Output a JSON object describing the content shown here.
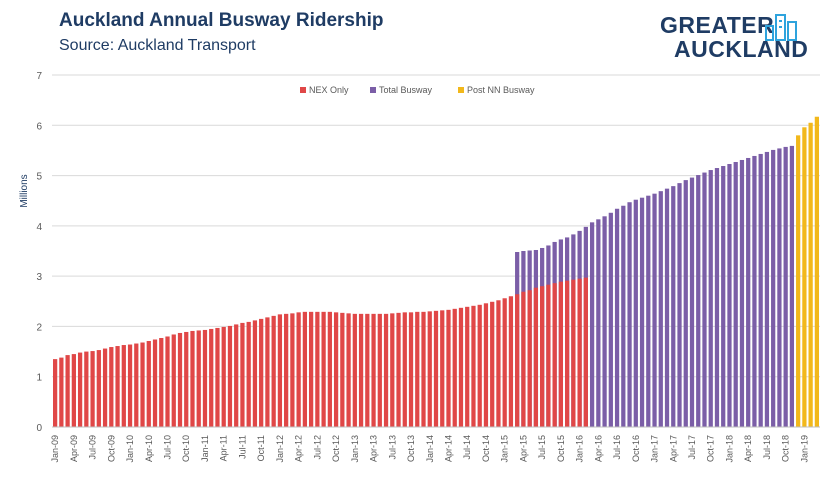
{
  "header": {
    "title": "Auckland Annual Busway Ridership",
    "subtitle": "Source: Auckland Transport",
    "logo_line1": "GREATER",
    "logo_line2": "AUCKLAND"
  },
  "colors": {
    "nex_only": "#e04747",
    "total_busway": "#7b5ea7",
    "post_nn": "#f2b81b",
    "grid": "#d9d9d9",
    "text": "#595959",
    "brand": "#1f3c64",
    "accent": "#2ea3dd"
  },
  "chart_data": {
    "type": "bar",
    "ylabel": "Millions",
    "ylim": [
      0,
      7
    ],
    "yticks": [
      "0",
      "1",
      "2",
      "3",
      "4",
      "5",
      "6",
      "7"
    ],
    "grid": true,
    "legend_placement": "top-center",
    "x_tick_labels": [
      "Jan-09",
      "Apr-09",
      "Jul-09",
      "Oct-09",
      "Jan-10",
      "Apr-10",
      "Jul-10",
      "Oct-10",
      "Jan-11",
      "Apr-11",
      "Jul-11",
      "Oct-11",
      "Jan-12",
      "Apr-12",
      "Jul-12",
      "Oct-12",
      "Jan-13",
      "Apr-13",
      "Jul-13",
      "Oct-13",
      "Jan-14",
      "Apr-14",
      "Jul-14",
      "Oct-14",
      "Jan-15",
      "Apr-15",
      "Jul-15",
      "Oct-15",
      "Jan-16",
      "Apr-16",
      "Jul-16",
      "Oct-16",
      "Jan-17",
      "Apr-17",
      "Jul-17",
      "Oct-17",
      "Jan-18",
      "Apr-18",
      "Jul-18",
      "Oct-18",
      "Jan-19"
    ],
    "series": [
      {
        "name": "NEX Only",
        "values": [
          1.35,
          1.38,
          1.43,
          1.45,
          1.48,
          1.5,
          1.51,
          1.53,
          1.56,
          1.59,
          1.61,
          1.63,
          1.64,
          1.66,
          1.68,
          1.71,
          1.74,
          1.77,
          1.8,
          1.84,
          1.87,
          1.89,
          1.91,
          1.92,
          1.93,
          1.95,
          1.97,
          1.99,
          2.01,
          2.04,
          2.07,
          2.09,
          2.12,
          2.15,
          2.18,
          2.21,
          2.24,
          2.25,
          2.26,
          2.28,
          2.29,
          2.29,
          2.29,
          2.29,
          2.29,
          2.28,
          2.27,
          2.26,
          2.25,
          2.25,
          2.25,
          2.25,
          2.25,
          2.25,
          2.26,
          2.27,
          2.28,
          2.28,
          2.29,
          2.29,
          2.3,
          2.31,
          2.32,
          2.33,
          2.35,
          2.37,
          2.39,
          2.41,
          2.43,
          2.46,
          2.49,
          2.52,
          2.56,
          2.6,
          2.64,
          2.69,
          2.72,
          2.77,
          2.8,
          2.83,
          2.86,
          2.89,
          2.91,
          2.93,
          2.95,
          2.97
        ]
      },
      {
        "name": "Total Busway",
        "values": [
          3.48,
          3.5,
          3.51,
          3.52,
          3.56,
          3.61,
          3.68,
          3.73,
          3.77,
          3.83,
          3.9,
          3.98,
          4.07,
          4.13,
          4.19,
          4.26,
          4.34,
          4.4,
          4.47,
          4.52,
          4.56,
          4.6,
          4.64,
          4.69,
          4.74,
          4.79,
          4.85,
          4.91,
          4.96,
          5.01,
          5.06,
          5.11,
          5.15,
          5.19,
          5.23,
          5.27,
          5.31,
          5.35,
          5.39,
          5.43,
          5.47,
          5.51,
          5.54,
          5.57,
          5.59
        ]
      },
      {
        "name": "Post NN Busway",
        "values": [
          5.8,
          5.96,
          6.05,
          6.17
        ]
      }
    ]
  }
}
